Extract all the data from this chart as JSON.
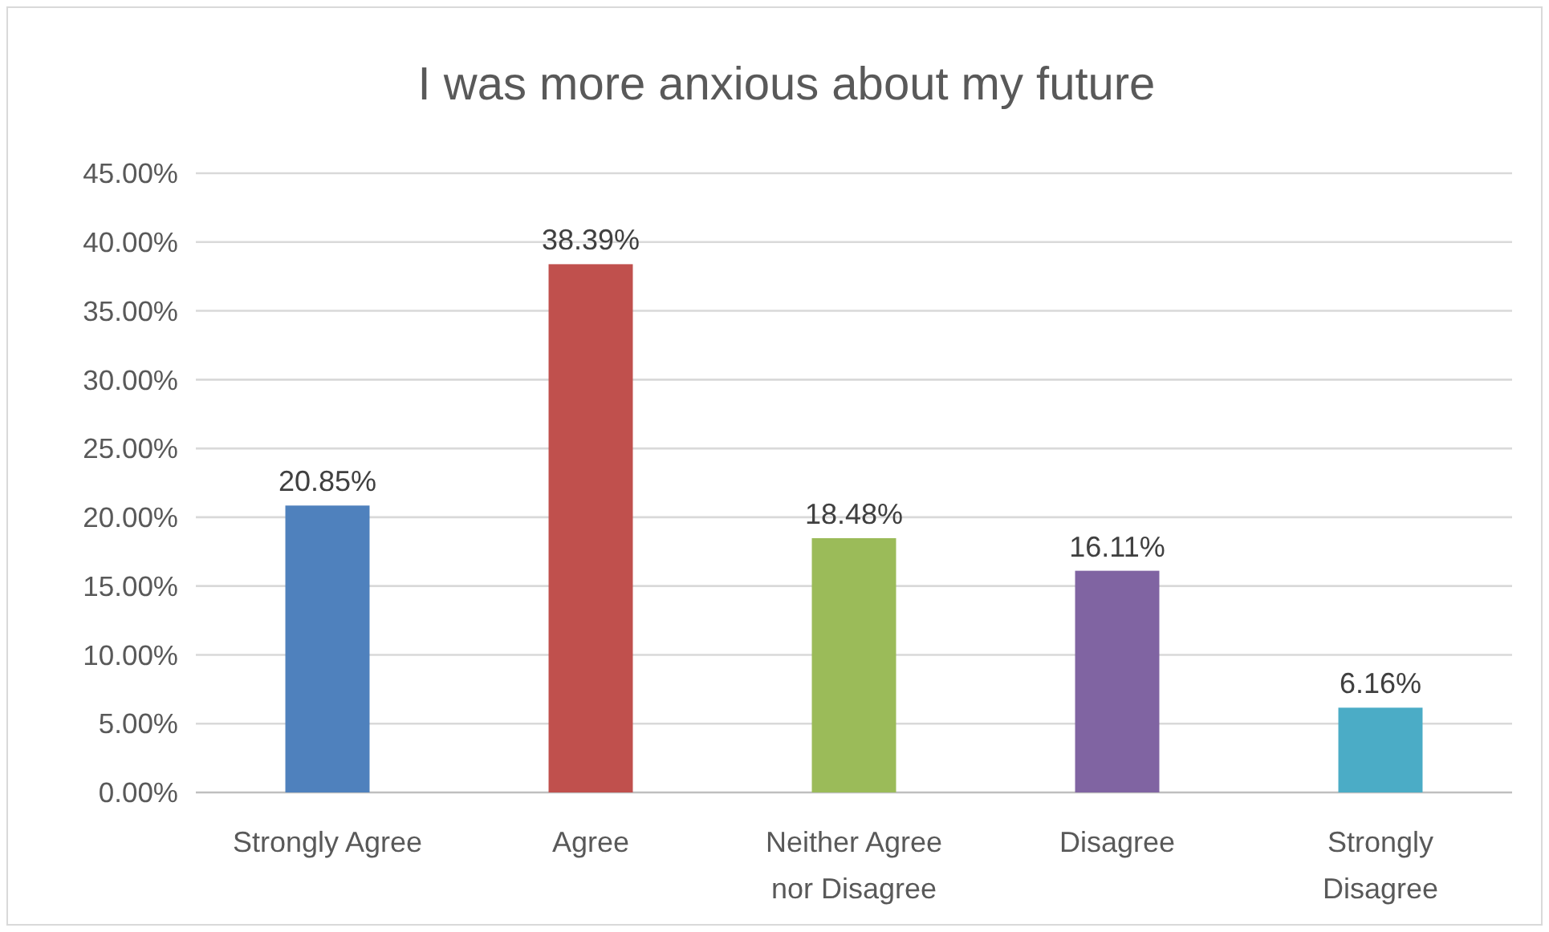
{
  "chart_data": {
    "type": "bar",
    "title": "I was more anxious about my future",
    "categories": [
      "Strongly Agree",
      "Agree",
      "Neither Agree nor Disagree",
      "Disagree",
      "Strongly Disagree"
    ],
    "values": [
      20.85,
      38.39,
      18.48,
      16.11,
      6.16
    ],
    "colors": [
      "#4f81bd",
      "#c0504d",
      "#9bbb59",
      "#8064a2",
      "#4bacc6"
    ],
    "value_labels": [
      "20.85%",
      "38.39%",
      "18.48%",
      "16.11%",
      "6.16%"
    ],
    "ylim": [
      0,
      45
    ],
    "yticks": [
      {
        "value": 0,
        "label": "0.00%"
      },
      {
        "value": 5,
        "label": "5.00%"
      },
      {
        "value": 10,
        "label": "10.00%"
      },
      {
        "value": 15,
        "label": "15.00%"
      },
      {
        "value": 20,
        "label": "20.00%"
      },
      {
        "value": 25,
        "label": "25.00%"
      },
      {
        "value": 30,
        "label": "30.00%"
      },
      {
        "value": 35,
        "label": "35.00%"
      },
      {
        "value": 40,
        "label": "40.00%"
      },
      {
        "value": 45,
        "label": "45.00%"
      }
    ],
    "grid": "y"
  }
}
